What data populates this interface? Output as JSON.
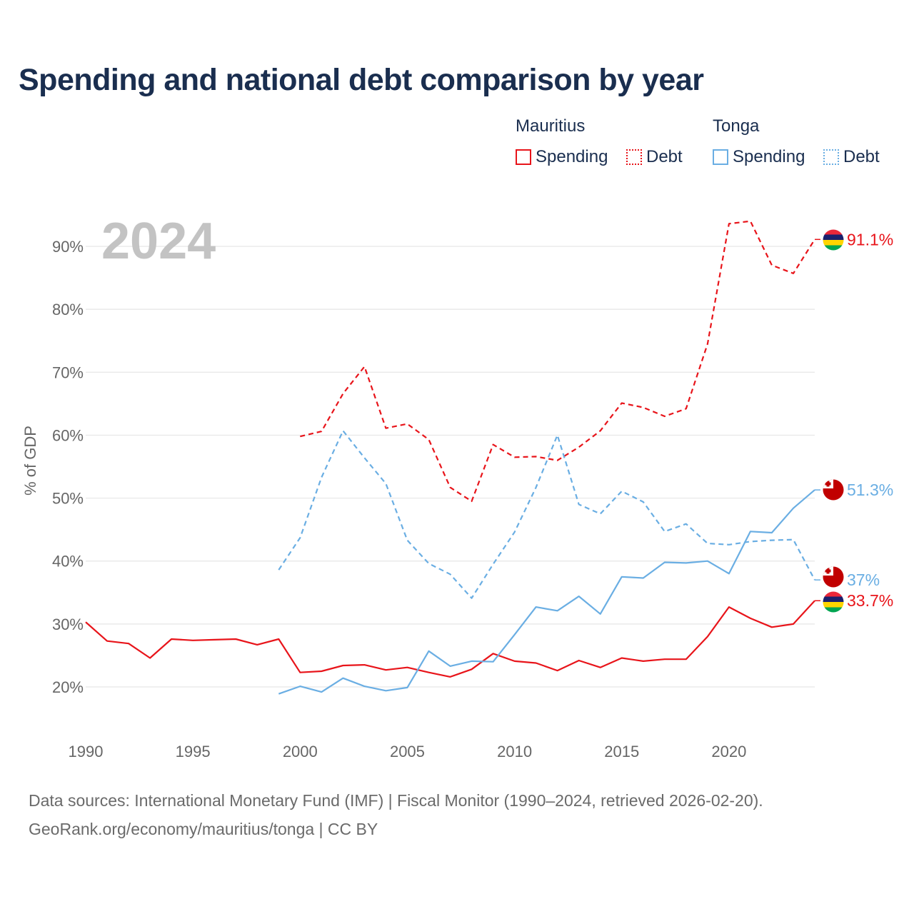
{
  "title": "Spending and national debt comparison by year",
  "legend": {
    "groups": [
      {
        "country": "Mauritius",
        "spending_label": "Spending",
        "debt_label": "Debt",
        "color": "#e8141a"
      },
      {
        "country": "Tonga",
        "spending_label": "Spending",
        "debt_label": "Debt",
        "color": "#6aaee3"
      }
    ]
  },
  "footer": {
    "line1": "Data sources: International Monetary Fund (IMF) | Fiscal Monitor (1990–2024, retrieved 2026-02-20).",
    "line2": "GeoRank.org/economy/mauritius/tonga | CC BY"
  },
  "chart_data": {
    "type": "line",
    "title": "Spending and national debt comparison by year",
    "ylabel": "% of GDP",
    "xlabel": "",
    "year_watermark": "2024",
    "xlim": [
      1990,
      2024
    ],
    "ylim": [
      13,
      97
    ],
    "x_ticks": [
      1990,
      1995,
      2000,
      2005,
      2010,
      2015,
      2020
    ],
    "y_ticks": [
      {
        "value": 20,
        "label": "20%"
      },
      {
        "value": 30,
        "label": "30%"
      },
      {
        "value": 40,
        "label": "40%"
      },
      {
        "value": 50,
        "label": "50%"
      },
      {
        "value": 60,
        "label": "60%"
      },
      {
        "value": 70,
        "label": "70%"
      },
      {
        "value": 80,
        "label": "80%"
      },
      {
        "value": 90,
        "label": "90%"
      }
    ],
    "grid": true,
    "series": [
      {
        "name": "Mauritius Spending",
        "country": "mauritius",
        "kind": "spending",
        "color": "#e8141a",
        "dashed": false,
        "end_label": "33.7%",
        "points": [
          [
            1990,
            30.3
          ],
          [
            1991,
            27.3
          ],
          [
            1992,
            26.9
          ],
          [
            1993,
            24.6
          ],
          [
            1994,
            27.6
          ],
          [
            1995,
            27.4
          ],
          [
            1996,
            27.5
          ],
          [
            1997,
            27.6
          ],
          [
            1998,
            26.7
          ],
          [
            1999,
            27.6
          ],
          [
            2000,
            22.3
          ],
          [
            2001,
            22.5
          ],
          [
            2002,
            23.4
          ],
          [
            2003,
            23.5
          ],
          [
            2004,
            22.7
          ],
          [
            2005,
            23.1
          ],
          [
            2006,
            22.3
          ],
          [
            2007,
            21.6
          ],
          [
            2008,
            22.8
          ],
          [
            2009,
            25.3
          ],
          [
            2010,
            24.1
          ],
          [
            2011,
            23.8
          ],
          [
            2012,
            22.6
          ],
          [
            2013,
            24.2
          ],
          [
            2014,
            23.1
          ],
          [
            2015,
            24.6
          ],
          [
            2016,
            24.1
          ],
          [
            2017,
            24.4
          ],
          [
            2018,
            24.4
          ],
          [
            2019,
            28.0
          ],
          [
            2020,
            32.7
          ],
          [
            2021,
            30.9
          ],
          [
            2022,
            29.5
          ],
          [
            2023,
            30.0
          ],
          [
            2024,
            33.7
          ]
        ]
      },
      {
        "name": "Mauritius Debt",
        "country": "mauritius",
        "kind": "debt",
        "color": "#e8141a",
        "dashed": true,
        "end_label": "91.1%",
        "points": [
          [
            2000,
            59.8
          ],
          [
            2001,
            60.6
          ],
          [
            2002,
            66.6
          ],
          [
            2003,
            70.9
          ],
          [
            2004,
            61.1
          ],
          [
            2005,
            61.8
          ],
          [
            2006,
            59.3
          ],
          [
            2007,
            51.7
          ],
          [
            2008,
            49.5
          ],
          [
            2009,
            58.5
          ],
          [
            2010,
            56.5
          ],
          [
            2011,
            56.6
          ],
          [
            2012,
            56.0
          ],
          [
            2013,
            58.1
          ],
          [
            2014,
            60.7
          ],
          [
            2015,
            65.1
          ],
          [
            2016,
            64.4
          ],
          [
            2017,
            63.0
          ],
          [
            2018,
            64.2
          ],
          [
            2019,
            74.5
          ],
          [
            2020,
            93.6
          ],
          [
            2021,
            94.0
          ],
          [
            2022,
            87.0
          ],
          [
            2023,
            85.7
          ],
          [
            2024,
            91.1
          ]
        ]
      },
      {
        "name": "Tonga Spending",
        "country": "tonga",
        "kind": "spending",
        "color": "#6aaee3",
        "dashed": false,
        "end_label": "51.3%",
        "points": [
          [
            1999,
            18.9
          ],
          [
            2000,
            20.1
          ],
          [
            2001,
            19.2
          ],
          [
            2002,
            21.4
          ],
          [
            2003,
            20.1
          ],
          [
            2004,
            19.4
          ],
          [
            2005,
            19.9
          ],
          [
            2006,
            25.7
          ],
          [
            2007,
            23.3
          ],
          [
            2008,
            24.1
          ],
          [
            2009,
            24.0
          ],
          [
            2010,
            28.3
          ],
          [
            2011,
            32.7
          ],
          [
            2012,
            32.1
          ],
          [
            2013,
            34.4
          ],
          [
            2014,
            31.6
          ],
          [
            2015,
            37.5
          ],
          [
            2016,
            37.3
          ],
          [
            2017,
            39.8
          ],
          [
            2018,
            39.7
          ],
          [
            2019,
            40.0
          ],
          [
            2020,
            38.0
          ],
          [
            2021,
            44.7
          ],
          [
            2022,
            44.5
          ],
          [
            2023,
            48.4
          ],
          [
            2024,
            51.3
          ]
        ]
      },
      {
        "name": "Tonga Debt",
        "country": "tonga",
        "kind": "debt",
        "color": "#6aaee3",
        "dashed": true,
        "end_label": "37%",
        "points": [
          [
            1999,
            38.6
          ],
          [
            2000,
            43.7
          ],
          [
            2001,
            53.3
          ],
          [
            2002,
            60.7
          ],
          [
            2003,
            56.4
          ],
          [
            2004,
            52.3
          ],
          [
            2005,
            43.3
          ],
          [
            2006,
            39.6
          ],
          [
            2007,
            37.9
          ],
          [
            2008,
            34.1
          ],
          [
            2009,
            39.5
          ],
          [
            2010,
            44.6
          ],
          [
            2011,
            51.7
          ],
          [
            2012,
            60.0
          ],
          [
            2013,
            49.0
          ],
          [
            2014,
            47.5
          ],
          [
            2015,
            51.1
          ],
          [
            2016,
            49.4
          ],
          [
            2017,
            44.7
          ],
          [
            2018,
            45.9
          ],
          [
            2019,
            42.8
          ],
          [
            2020,
            42.6
          ],
          [
            2021,
            43.1
          ],
          [
            2022,
            43.3
          ],
          [
            2023,
            43.4
          ],
          [
            2024,
            37.0
          ]
        ]
      }
    ]
  }
}
